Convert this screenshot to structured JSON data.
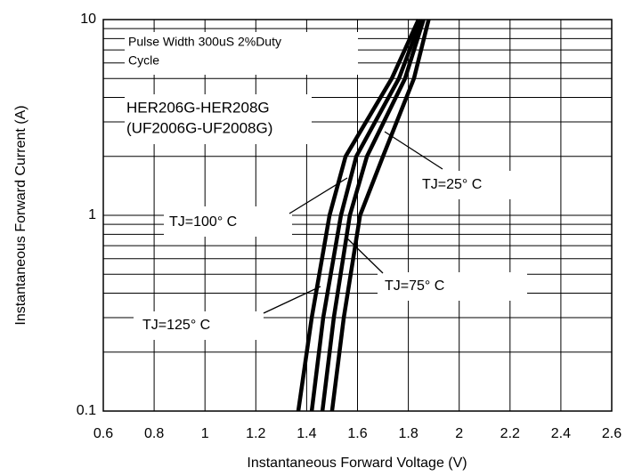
{
  "chart_data": {
    "type": "line",
    "log_y": true,
    "grid": true,
    "xlabel": "Instantaneous Forward Voltage (V)",
    "ylabel": "Instantaneous Forward Current (A)",
    "xlim": [
      0.6,
      2.6
    ],
    "xticks": [
      0.6,
      0.8,
      1,
      1.2,
      1.4,
      1.6,
      1.8,
      2,
      2.2,
      2.4,
      2.6
    ],
    "ylim": [
      0.1,
      10
    ],
    "yticks": [
      0.1,
      1,
      10
    ],
    "annotations": [
      "Pulse Width 300uS 2%Duty",
      "Cycle",
      "HER206G-HER208G",
      "(UF2006G-UF2008G)"
    ],
    "series": [
      {
        "name": "TJ=125° C",
        "color": "#000000",
        "x": [
          1.367,
          1.42,
          1.49,
          1.553,
          1.735,
          1.84
        ],
        "values": [
          0.1,
          0.3,
          1,
          2,
          5,
          10
        ]
      },
      {
        "name": "TJ=100° C",
        "color": "#000000",
        "x": [
          1.42,
          1.465,
          1.535,
          1.595,
          1.763,
          1.85
        ],
        "values": [
          0.1,
          0.3,
          1,
          2,
          5,
          10
        ]
      },
      {
        "name": "TJ=75° C",
        "color": "#000000",
        "x": [
          1.462,
          1.507,
          1.57,
          1.637,
          1.787,
          1.86
        ],
        "values": [
          0.1,
          0.3,
          1,
          2,
          5,
          10
        ]
      },
      {
        "name": "TJ=25° C",
        "color": "#000000",
        "x": [
          1.5,
          1.546,
          1.61,
          1.7,
          1.822,
          1.88
        ],
        "values": [
          0.1,
          0.3,
          1,
          2,
          5,
          10
        ]
      }
    ]
  }
}
